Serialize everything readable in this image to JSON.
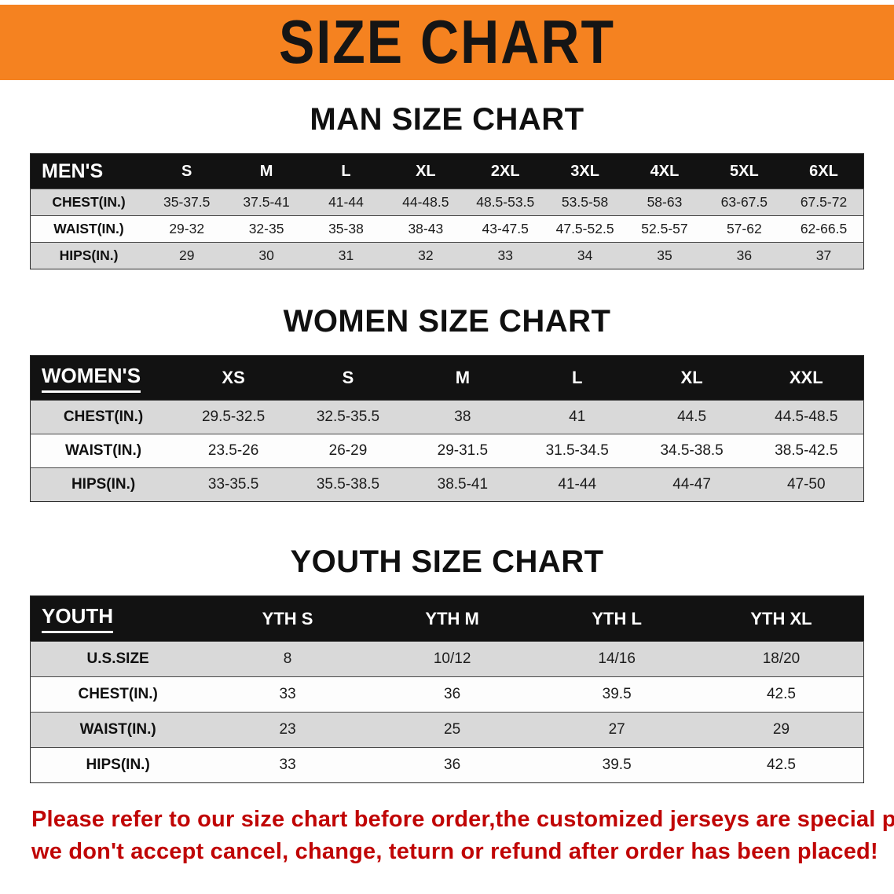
{
  "banner": {
    "title": "SIZE CHART",
    "bg_color": "#F58220",
    "text_color": "#151515"
  },
  "sections": [
    {
      "heading": "MAN SIZE CHART",
      "table": {
        "header": [
          "MEN'S",
          "S",
          "M",
          "L",
          "XL",
          "2XL",
          "3XL",
          "4XL",
          "5XL",
          "6XL"
        ],
        "rows": [
          [
            "CHEST(IN.)",
            "35-37.5",
            "37.5-41",
            "41-44",
            "44-48.5",
            "48.5-53.5",
            "53.5-58",
            "58-63",
            "63-67.5",
            "67.5-72"
          ],
          [
            "WAIST(IN.)",
            "29-32",
            "32-35",
            "35-38",
            "38-43",
            "43-47.5",
            "47.5-52.5",
            "52.5-57",
            "57-62",
            "62-66.5"
          ],
          [
            "HIPS(IN.)",
            "29",
            "30",
            "31",
            "32",
            "33",
            "34",
            "35",
            "36",
            "37"
          ]
        ]
      }
    },
    {
      "heading": "WOMEN SIZE CHART",
      "table": {
        "header": [
          "WOMEN'S",
          "XS",
          "S",
          "M",
          "L",
          "XL",
          "XXL"
        ],
        "rows": [
          [
            "CHEST(IN.)",
            "29.5-32.5",
            "32.5-35.5",
            "38",
            "41",
            "44.5",
            "44.5-48.5"
          ],
          [
            "WAIST(IN.)",
            "23.5-26",
            "26-29",
            "29-31.5",
            "31.5-34.5",
            "34.5-38.5",
            "38.5-42.5"
          ],
          [
            "HIPS(IN.)",
            "33-35.5",
            "35.5-38.5",
            "38.5-41",
            "41-44",
            "44-47",
            "47-50"
          ]
        ]
      }
    },
    {
      "heading": "YOUTH SIZE CHART",
      "table": {
        "header": [
          "YOUTH",
          "YTH S",
          "YTH M",
          "YTH L",
          "YTH XL"
        ],
        "rows": [
          [
            "U.S.SIZE",
            "8",
            "10/12",
            "14/16",
            "18/20"
          ],
          [
            "CHEST(IN.)",
            "33",
            "36",
            "39.5",
            "42.5"
          ],
          [
            "WAIST(IN.)",
            "23",
            "25",
            "27",
            "29"
          ],
          [
            "HIPS(IN.)",
            "33",
            "36",
            "39.5",
            "42.5"
          ]
        ]
      }
    }
  ],
  "disclaimer": {
    "line1": "Please refer to our size chart before order,the customized jerseys are special products,",
    "line2": "we don't accept cancel, change, teturn or refund after order has been placed!",
    "color": "#C00000"
  }
}
